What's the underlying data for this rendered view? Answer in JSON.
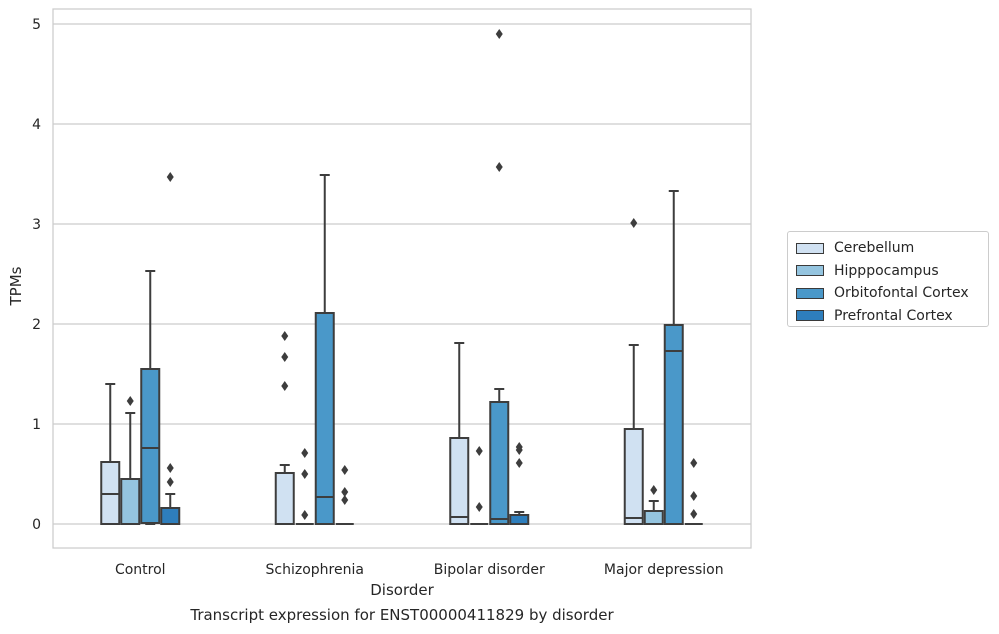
{
  "chart_data": {
    "type": "box",
    "caption": "Transcript expression for ENST00000411829 by disorder",
    "xlabel": "Disorder",
    "ylabel": "TPMs",
    "ylim": [
      -0.24,
      5.15
    ],
    "yticks": [
      0,
      1,
      2,
      3,
      4,
      5
    ],
    "grid": "horizontal",
    "legend_position": "right",
    "categories": [
      "Control",
      "Schizophrenia",
      "Bipolar disorder",
      "Major depression"
    ],
    "series": [
      {
        "name": "Cerebellum",
        "color": "#d0e1f2",
        "boxes": [
          {
            "q1": 0,
            "median": 0.3,
            "q3": 0.62,
            "whisker_low": 0,
            "whisker_high": 1.4,
            "outliers": []
          },
          {
            "q1": 0,
            "median": 0,
            "q3": 0.51,
            "whisker_low": 0,
            "whisker_high": 0.59,
            "outliers": [
              1.38,
              1.67,
              1.88
            ]
          },
          {
            "q1": 0,
            "median": 0.07,
            "q3": 0.86,
            "whisker_low": 0,
            "whisker_high": 1.81,
            "outliers": []
          },
          {
            "q1": 0,
            "median": 0.06,
            "q3": 0.95,
            "whisker_low": 0,
            "whisker_high": 1.79,
            "outliers": [
              3.01
            ]
          }
        ]
      },
      {
        "name": "Hipppocampus",
        "color": "#94c4df",
        "boxes": [
          {
            "q1": 0,
            "median": 0,
            "q3": 0.45,
            "whisker_low": 0,
            "whisker_high": 1.11,
            "outliers": [
              1.23
            ]
          },
          {
            "q1": 0,
            "median": 0,
            "q3": 0,
            "whisker_low": 0,
            "whisker_high": 0,
            "outliers": [
              0.09,
              0.5,
              0.71
            ]
          },
          {
            "q1": 0,
            "median": 0,
            "q3": 0,
            "whisker_low": 0,
            "whisker_high": 0,
            "outliers": [
              0.17,
              0.73
            ]
          },
          {
            "q1": 0,
            "median": 0,
            "q3": 0.13,
            "whisker_low": 0,
            "whisker_high": 0.23,
            "outliers": [
              0.34
            ]
          }
        ]
      },
      {
        "name": "Orbitofontal Cortex",
        "color": "#4a98c9",
        "boxes": [
          {
            "q1": 0.01,
            "median": 0.76,
            "q3": 1.55,
            "whisker_low": 0,
            "whisker_high": 2.53,
            "outliers": []
          },
          {
            "q1": 0,
            "median": 0.27,
            "q3": 2.11,
            "whisker_low": 0,
            "whisker_high": 3.49,
            "outliers": []
          },
          {
            "q1": 0,
            "median": 0.05,
            "q3": 1.22,
            "whisker_low": 0,
            "whisker_high": 1.35,
            "outliers": [
              3.57,
              4.9
            ]
          },
          {
            "q1": 0,
            "median": 1.73,
            "q3": 1.99,
            "whisker_low": 0,
            "whisker_high": 3.33,
            "outliers": []
          }
        ]
      },
      {
        "name": "Prefrontal Cortex",
        "color": "#2e7ebc",
        "boxes": [
          {
            "q1": 0,
            "median": 0,
            "q3": 0.16,
            "whisker_low": 0,
            "whisker_high": 0.3,
            "outliers": [
              0.42,
              0.56,
              3.47
            ]
          },
          {
            "q1": 0,
            "median": 0,
            "q3": 0,
            "whisker_low": 0,
            "whisker_high": 0,
            "outliers": [
              0.24,
              0.32,
              0.54
            ]
          },
          {
            "q1": 0,
            "median": 0,
            "q3": 0.09,
            "whisker_low": 0,
            "whisker_high": 0.12,
            "outliers": [
              0.61,
              0.74,
              0.77
            ]
          },
          {
            "q1": 0,
            "median": 0,
            "q3": 0,
            "whisker_low": 0,
            "whisker_high": 0,
            "outliers": [
              0.1,
              0.28,
              0.61
            ]
          }
        ]
      }
    ]
  }
}
